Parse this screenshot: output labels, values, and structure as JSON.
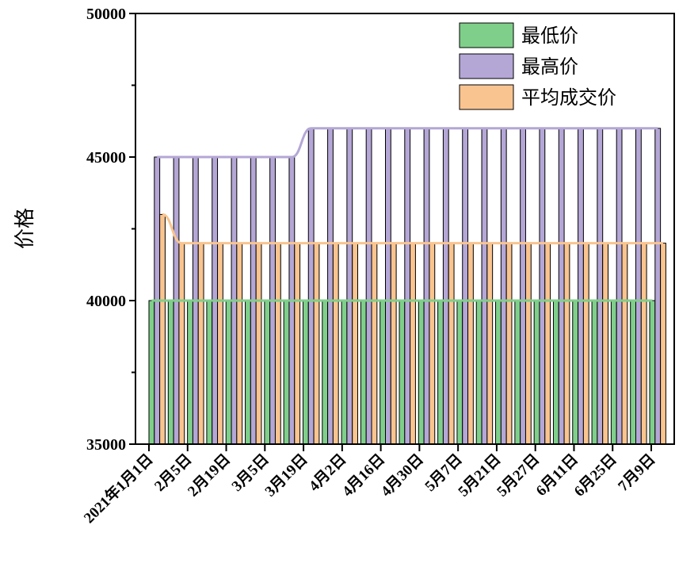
{
  "chart_data": {
    "type": "bar",
    "ylabel": "价格",
    "xlabel": "",
    "ylim": [
      35000,
      50000
    ],
    "yticks": [
      35000,
      40000,
      45000,
      50000
    ],
    "grid": false,
    "legend_position": "top-right",
    "xtick_labels": [
      "2021年1月1日",
      "2月5日",
      "2月19日",
      "3月5日",
      "3月19日",
      "4月2日",
      "4月16日",
      "4月30日",
      "5月7日",
      "5月21日",
      "5月27日",
      "6月11日",
      "6月25日",
      "7月9日"
    ],
    "bar_count": 27,
    "series": [
      {
        "name": "最低价",
        "color": "#7fcf8a",
        "values": [
          40000,
          40000,
          40000,
          40000,
          40000,
          40000,
          40000,
          40000,
          40000,
          40000,
          40000,
          40000,
          40000,
          40000,
          40000,
          40000,
          40000,
          40000,
          40000,
          40000,
          40000,
          40000,
          40000,
          40000,
          40000,
          40000,
          40000
        ]
      },
      {
        "name": "最高价",
        "color": "#b4a7d6",
        "values": [
          45000,
          45000,
          45000,
          45000,
          45000,
          45000,
          45000,
          45000,
          46000,
          46000,
          46000,
          46000,
          46000,
          46000,
          46000,
          46000,
          46000,
          46000,
          46000,
          46000,
          46000,
          46000,
          46000,
          46000,
          46000,
          46000,
          46000
        ]
      },
      {
        "name": "平均成交价",
        "color": "#f9c48f",
        "values": [
          43000,
          42000,
          42000,
          42000,
          42000,
          42000,
          42000,
          42000,
          42000,
          42000,
          42000,
          42000,
          42000,
          42000,
          42000,
          42000,
          42000,
          42000,
          42000,
          42000,
          42000,
          42000,
          42000,
          42000,
          42000,
          42000,
          42000
        ]
      }
    ]
  }
}
